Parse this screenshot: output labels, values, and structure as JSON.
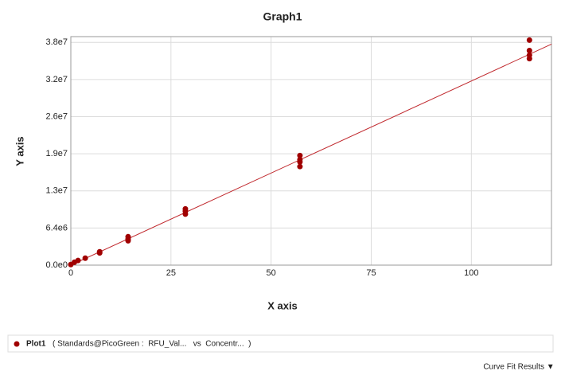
{
  "chart_data": {
    "type": "scatter",
    "title": "Graph1",
    "x_label": "X axis",
    "y_label": "Y axis",
    "xlim": [
      0,
      120
    ],
    "xticks": [
      0,
      25,
      50,
      75,
      100
    ],
    "ylim": [
      0,
      39400000
    ],
    "yticks": [
      {
        "value": 0,
        "label": "0.0e0"
      },
      {
        "value": 6400000,
        "label": "6.4e6"
      },
      {
        "value": 12800000,
        "label": "1.3e7"
      },
      {
        "value": 19200000,
        "label": "1.9e7"
      },
      {
        "value": 25600000,
        "label": "2.6e7"
      },
      {
        "value": 32000000,
        "label": "3.2e7"
      },
      {
        "value": 38400000,
        "label": "3.8e7"
      }
    ],
    "grid": true,
    "series": [
      {
        "name": "Plot1",
        "color": "#a00000",
        "x": [
          0,
          0.9,
          1.8,
          3.6,
          7.2,
          7.2,
          14.3,
          14.3,
          14.3,
          28.6,
          28.6,
          28.6,
          57.2,
          57.2,
          57.2,
          57.2,
          114.5,
          114.5,
          114.5,
          114.5
        ],
        "values": [
          100000,
          500000,
          800000,
          1200000,
          2300000,
          2100000,
          4900000,
          4500000,
          4200000,
          9700000,
          9300000,
          8800000,
          18900000,
          18200000,
          17800000,
          17000000,
          38800000,
          37000000,
          36200000,
          35600000
        ]
      }
    ],
    "fit_line": {
      "color": "#c0282d",
      "x": [
        0,
        120
      ],
      "values": [
        0,
        38100000
      ]
    },
    "legend_description": "( Standards@PicoGreen :  RFU_Val...   vs  Concentr...  )"
  },
  "footer": {
    "button": "Curve Fit Results ▼"
  }
}
